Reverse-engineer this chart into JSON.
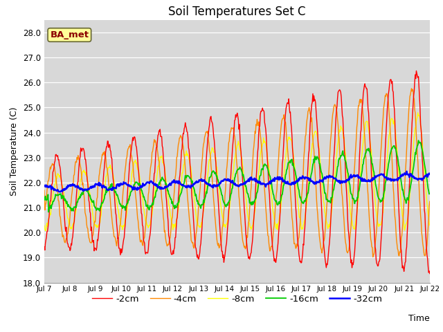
{
  "title": "Soil Temperatures Set C",
  "xlabel": "Time",
  "ylabel": "Soil Temperature (C)",
  "ylim": [
    18.0,
    28.5
  ],
  "yticks": [
    18.0,
    19.0,
    20.0,
    21.0,
    22.0,
    23.0,
    24.0,
    25.0,
    26.0,
    27.0,
    28.0
  ],
  "xtick_labels": [
    "Jul 7",
    "Jul 8",
    "Jul 9",
    "Jul 10",
    "Jul 11",
    "Jul 12",
    "Jul 13",
    "Jul 14",
    "Jul 15",
    "Jul 16",
    "Jul 17",
    "Jul 18",
    "Jul 19",
    "Jul 20",
    "Jul 21",
    "Jul 22"
  ],
  "colors": {
    "-2cm": "#ff0000",
    "-4cm": "#ff8800",
    "-8cm": "#ffff00",
    "-16cm": "#00cc00",
    "-32cm": "#0000ff"
  },
  "legend_labels": [
    "-2cm",
    "-4cm",
    "-8cm",
    "-16cm",
    "-32cm"
  ],
  "annotation_text": "BA_met",
  "annotation_color": "#8b0000",
  "annotation_bg": "#ffff99",
  "plot_bg": "#d8d8d8",
  "title_fontsize": 12
}
